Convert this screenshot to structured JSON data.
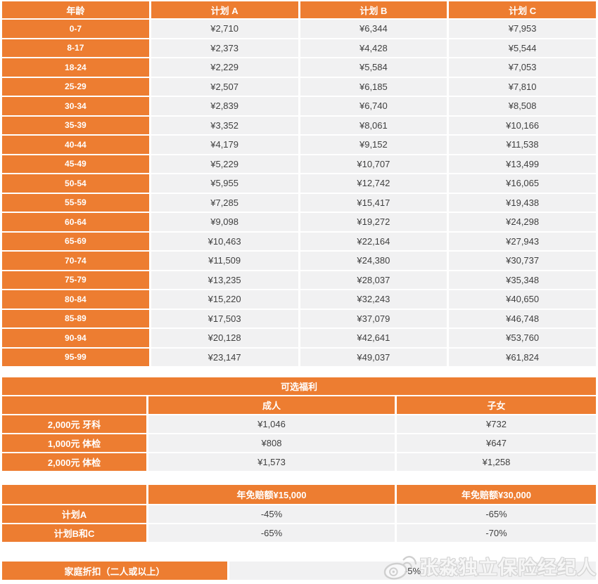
{
  "accent_color": "#ED7D31",
  "row_bg_color": "#F1F1F2",
  "premium_table": {
    "headers": [
      "年龄",
      "计划 A",
      "计划 B",
      "计划 C"
    ],
    "rows": [
      {
        "age": "0-7",
        "plan_a": "¥2,710",
        "plan_b": "¥6,344",
        "plan_c": "¥7,953"
      },
      {
        "age": "8-17",
        "plan_a": "¥2,373",
        "plan_b": "¥4,428",
        "plan_c": "¥5,544"
      },
      {
        "age": "18-24",
        "plan_a": "¥2,229",
        "plan_b": "¥5,584",
        "plan_c": "¥7,053"
      },
      {
        "age": "25-29",
        "plan_a": "¥2,507",
        "plan_b": "¥6,185",
        "plan_c": "¥7,810"
      },
      {
        "age": "30-34",
        "plan_a": "¥2,839",
        "plan_b": "¥6,740",
        "plan_c": "¥8,508"
      },
      {
        "age": "35-39",
        "plan_a": "¥3,352",
        "plan_b": "¥8,061",
        "plan_c": "¥10,166"
      },
      {
        "age": "40-44",
        "plan_a": "¥4,179",
        "plan_b": "¥9,152",
        "plan_c": "¥11,538"
      },
      {
        "age": "45-49",
        "plan_a": "¥5,229",
        "plan_b": "¥10,707",
        "plan_c": "¥13,499"
      },
      {
        "age": "50-54",
        "plan_a": "¥5,955",
        "plan_b": "¥12,742",
        "plan_c": "¥16,065"
      },
      {
        "age": "55-59",
        "plan_a": "¥7,285",
        "plan_b": "¥15,417",
        "plan_c": "¥19,438"
      },
      {
        "age": "60-64",
        "plan_a": "¥9,098",
        "plan_b": "¥19,272",
        "plan_c": "¥24,298"
      },
      {
        "age": "65-69",
        "plan_a": "¥10,463",
        "plan_b": "¥22,164",
        "plan_c": "¥27,943"
      },
      {
        "age": "70-74",
        "plan_a": "¥11,509",
        "plan_b": "¥24,380",
        "plan_c": "¥30,737"
      },
      {
        "age": "75-79",
        "plan_a": "¥13,235",
        "plan_b": "¥28,037",
        "plan_c": "¥35,348"
      },
      {
        "age": "80-84",
        "plan_a": "¥15,220",
        "plan_b": "¥32,243",
        "plan_c": "¥40,650"
      },
      {
        "age": "85-89",
        "plan_a": "¥17,503",
        "plan_b": "¥37,079",
        "plan_c": "¥46,748"
      },
      {
        "age": "90-94",
        "plan_a": "¥20,128",
        "plan_b": "¥42,641",
        "plan_c": "¥53,760"
      },
      {
        "age": "95-99",
        "plan_a": "¥23,147",
        "plan_b": "¥49,037",
        "plan_c": "¥61,824"
      }
    ]
  },
  "optional_benefits": {
    "title": "可选福利",
    "headers": [
      "",
      "成人",
      "子女"
    ],
    "rows": [
      {
        "label": "2,000元 牙科",
        "adult": "¥1,046",
        "child": "¥732"
      },
      {
        "label": "1,000元 体检",
        "adult": "¥808",
        "child": "¥647"
      },
      {
        "label": "2,000元 体检",
        "adult": "¥1,573",
        "child": "¥1,258"
      }
    ]
  },
  "deductible_table": {
    "headers": [
      "",
      "年免赔额¥15,000",
      "年免赔额¥30,000"
    ],
    "rows": [
      {
        "label": "计划A",
        "d15000": "-45%",
        "d30000": "-65%"
      },
      {
        "label": "计划B和C",
        "d15000": "-65%",
        "d30000": "-70%"
      }
    ]
  },
  "family_discount": {
    "label": "家庭折扣（二人或以上）",
    "value": "-5%"
  },
  "watermark": {
    "icon": "weibo-icon",
    "text": "张淼独立保险经纪人"
  }
}
